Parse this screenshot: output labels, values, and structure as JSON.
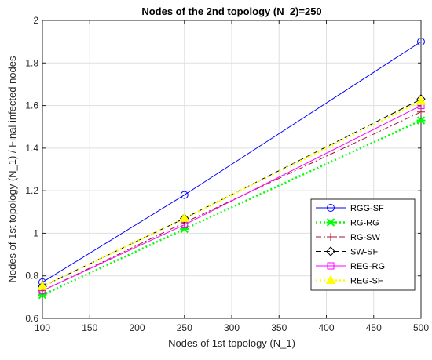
{
  "chart_data": {
    "type": "line",
    "title": "Nodes of the 2nd topology (N_2)=250",
    "xlabel": "Nodes of 1st topology (N_1)",
    "ylabel": "Nodes of 1st topology (N_1) / Final infected nodes",
    "x": [
      100,
      250,
      500
    ],
    "xlim": [
      100,
      500
    ],
    "ylim": [
      0.6,
      2.0
    ],
    "xticks": [
      100,
      150,
      200,
      250,
      300,
      350,
      400,
      450,
      500
    ],
    "yticks": [
      0.6,
      0.8,
      1,
      1.2,
      1.4,
      1.6,
      1.8,
      2
    ],
    "xtick_labels": [
      "100",
      "150",
      "200",
      "250",
      "300",
      "350",
      "400",
      "450",
      "500"
    ],
    "ytick_labels": [
      "0.6",
      "0.8",
      "1",
      "1.2",
      "1.4",
      "1.6",
      "1.8",
      "2"
    ],
    "grid": true,
    "legend_position": "lower-right",
    "series": [
      {
        "name": "RGG-SF",
        "values": [
          0.77,
          1.18,
          1.9
        ],
        "color": "#0000ff",
        "dash": "solid",
        "marker": "circle",
        "width": 1
      },
      {
        "name": "RG-RG",
        "values": [
          0.71,
          1.02,
          1.53
        ],
        "color": "#00ff00",
        "dash": "dotted",
        "marker": "x-star",
        "width": 2.5
      },
      {
        "name": "RG-SW",
        "values": [
          0.73,
          1.05,
          1.57
        ],
        "color": "#a2142f",
        "dash": "dashdot",
        "marker": "plus",
        "width": 1
      },
      {
        "name": "SW-SF",
        "values": [
          0.75,
          1.07,
          1.63
        ],
        "color": "#000000",
        "dash": "dashed",
        "marker": "diamond",
        "width": 1
      },
      {
        "name": "REG-RG",
        "values": [
          0.73,
          1.04,
          1.6
        ],
        "color": "#ff00ff",
        "dash": "solid",
        "marker": "square",
        "width": 1
      },
      {
        "name": "REG-SF",
        "values": [
          0.75,
          1.07,
          1.62
        ],
        "color": "#ffff00",
        "dash": "dotted",
        "marker": "triangle",
        "width": 2.5
      }
    ]
  }
}
